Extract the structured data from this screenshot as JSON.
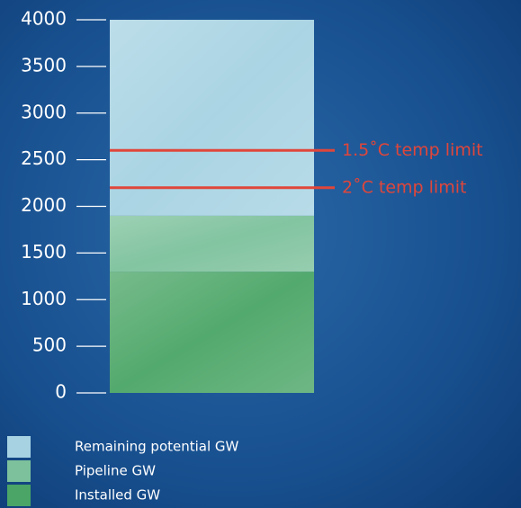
{
  "chart_data": {
    "type": "bar",
    "stacked": true,
    "categories": [
      null
    ],
    "series": [
      {
        "name": "Installed GW",
        "color": "#4aa566",
        "values": [
          1300
        ]
      },
      {
        "name": "Pipeline GW",
        "color": "#7cc19c",
        "values": [
          600
        ]
      },
      {
        "name": "Remaining potential GW",
        "color": "#a6d2e2",
        "values": [
          2100
        ]
      }
    ],
    "ylim": [
      0,
      4000
    ],
    "yticks": [
      0,
      500,
      1000,
      1500,
      2000,
      2500,
      3000,
      3500,
      4000
    ],
    "reference_lines": [
      {
        "value": 2600,
        "label": "1.5˚C temp limit",
        "color": "#e0463a"
      },
      {
        "value": 2200,
        "label": "2˚C temp limit",
        "color": "#e0463a"
      }
    ]
  }
}
